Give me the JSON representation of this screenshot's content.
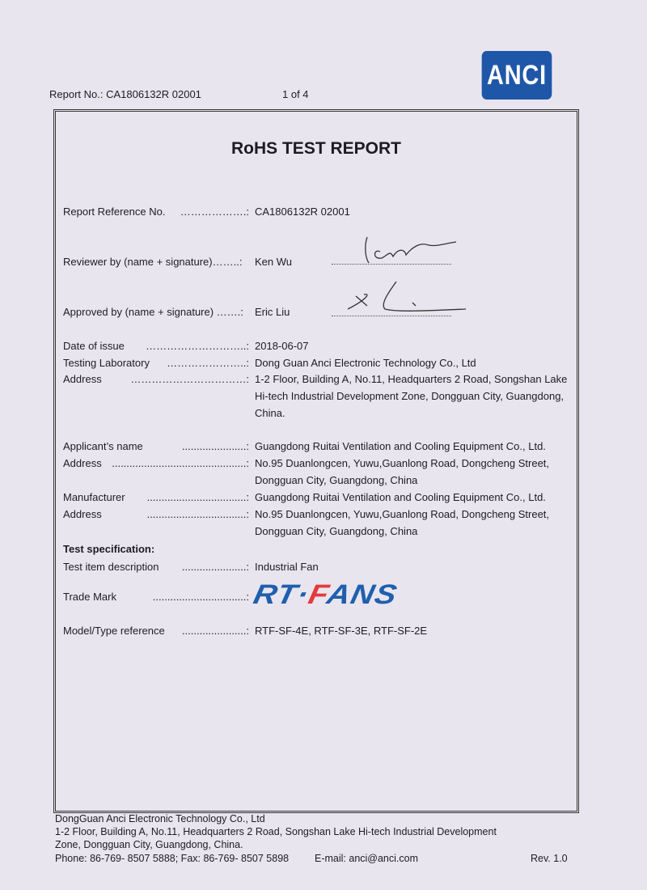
{
  "header": {
    "report_no": "Report No.: CA1806132R 02001",
    "page": "1 of 4",
    "logo": "ANCI",
    "logo_color": "#1f57a8"
  },
  "title": "RoHS TEST REPORT",
  "rows": [
    {
      "label": "Report Reference No.",
      "leader": "……………….:",
      "value": "CA1806132R 02001"
    },
    {
      "label": "Reviewer by (name + signature)……..:",
      "leader": "",
      "value": "Ken Wu"
    },
    {
      "label": "Approved by (name + signature) …….:",
      "leader": "",
      "value": "Eric Liu"
    },
    {
      "label": "Date of issue",
      "leader": "………………………..:",
      "value": "2018-06-07"
    },
    {
      "label": "Testing Laboratory",
      "leader": "…………………..:",
      "value": "Dong Guan Anci Electronic Technology Co., Ltd"
    },
    {
      "label": "Address",
      "leader": "……………………………:",
      "value": "1-2 Floor, Building A, No.11, Headquarters 2 Road, Songshan Lake",
      "cont": [
        "Hi-tech Industrial Development Zone, Dongguan City, Guangdong,",
        "China."
      ]
    },
    {
      "label": "Applicant’s name",
      "leader": "......................:",
      "value": "Guangdong Ruitai Ventilation and Cooling Equipment Co., Ltd."
    },
    {
      "label": "Address",
      "leader": "..............................................:",
      "value": "No.95 Duanlongcen, Yuwu,Guanlong Road, Dongcheng Street,",
      "cont": [
        "Dongguan City, Guangdong, China"
      ]
    },
    {
      "label": "Manufacturer",
      "leader": "..................................:",
      "value": "Guangdong Ruitai Ventilation and Cooling Equipment Co., Ltd."
    },
    {
      "label": "Address",
      "leader": "..................................:",
      "value": "No.95 Duanlongcen, Yuwu,Guanlong Road, Dongcheng Street,",
      "cont": [
        "Dongguan City, Guangdong, China"
      ]
    },
    {
      "label": "Test specification:",
      "leader": "",
      "value": ""
    },
    {
      "label": "Test item description",
      "leader": "......................:",
      "value": "Industrial Fan"
    },
    {
      "label": "Trade Mark",
      "leader": "................................:",
      "value": ""
    },
    {
      "label": "Model/Type reference",
      "leader": "......................:",
      "value": "RTF-SF-4E, RTF-SF-3E, RTF-SF-2E"
    }
  ],
  "trademark": {
    "left": "RT·",
    "right": "FANS",
    "blue": "#1f5fae",
    "red": "#e23b3b"
  },
  "footer": {
    "lines": [
      "DongGuan Anci Electronic Technology Co., Ltd",
      "1-2 Floor, Building A, No.11, Headquarters 2 Road, Songshan Lake Hi-tech Industrial Development",
      "Zone, Dongguan City, Guangdong, China."
    ],
    "phone": "Phone: 86-769- 8507 5888; Fax: 86-769- 8507 5898",
    "email": "E-mail: anci@anci.com",
    "rev": "Rev. 1.0"
  }
}
